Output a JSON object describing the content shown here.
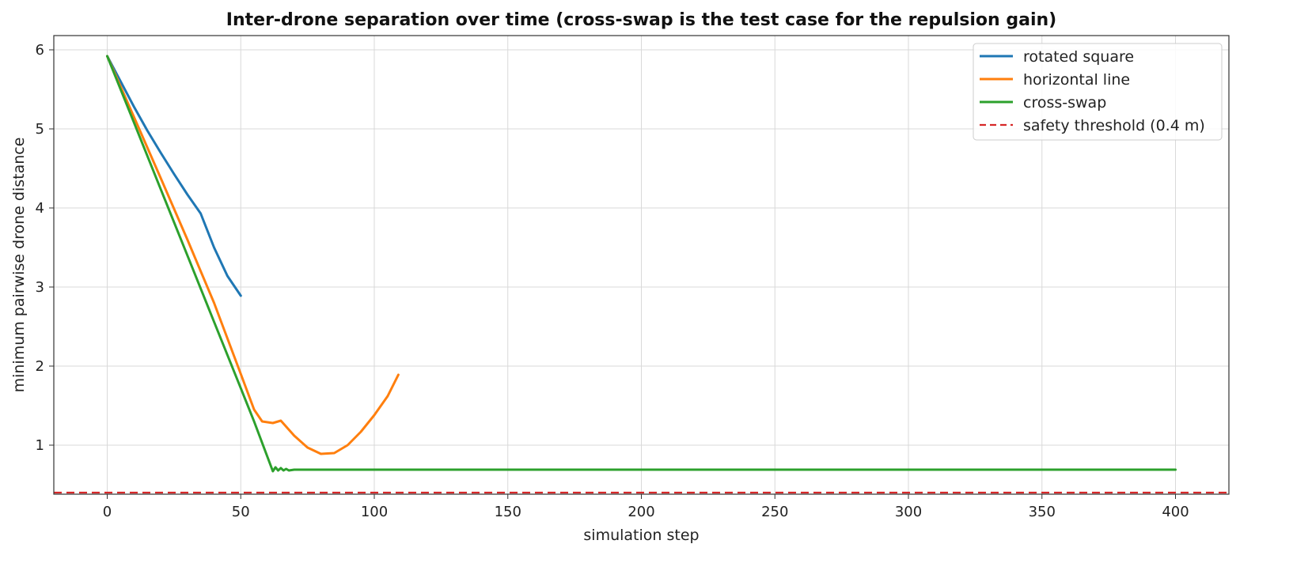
{
  "chart_data": {
    "type": "line",
    "title": "Inter-drone separation over time (cross-swap is the test case for the repulsion gain)",
    "xlabel": "simulation step",
    "ylabel": "minimum pairwise drone distance",
    "xlim": [
      -20,
      420
    ],
    "ylim": [
      0.38,
      6.18
    ],
    "xticks": [
      0,
      50,
      100,
      150,
      200,
      250,
      300,
      350,
      400
    ],
    "yticks": [
      1,
      2,
      3,
      4,
      5,
      6
    ],
    "grid": true,
    "legend_position": "top-right",
    "series": [
      {
        "name": "rotated square",
        "color": "#1f77b4",
        "dash": "solid",
        "points": [
          [
            0,
            5.92
          ],
          [
            5,
            5.6
          ],
          [
            10,
            5.28
          ],
          [
            15,
            4.98
          ],
          [
            20,
            4.7
          ],
          [
            25,
            4.43
          ],
          [
            30,
            4.17
          ],
          [
            35,
            3.93
          ],
          [
            40,
            3.5
          ],
          [
            45,
            3.14
          ],
          [
            50,
            2.89
          ]
        ]
      },
      {
        "name": "horizontal line",
        "color": "#ff7f0e",
        "dash": "solid",
        "points": [
          [
            0,
            5.92
          ],
          [
            10,
            5.15
          ],
          [
            20,
            4.38
          ],
          [
            30,
            3.6
          ],
          [
            40,
            2.8
          ],
          [
            50,
            1.9
          ],
          [
            55,
            1.45
          ],
          [
            58,
            1.3
          ],
          [
            62,
            1.28
          ],
          [
            65,
            1.31
          ],
          [
            70,
            1.12
          ],
          [
            75,
            0.97
          ],
          [
            80,
            0.89
          ],
          [
            85,
            0.9
          ],
          [
            90,
            1.0
          ],
          [
            95,
            1.17
          ],
          [
            100,
            1.38
          ],
          [
            105,
            1.62
          ],
          [
            109,
            1.89
          ]
        ]
      },
      {
        "name": "cross-swap",
        "color": "#2ca02c",
        "dash": "solid",
        "points": [
          [
            0,
            5.92
          ],
          [
            10,
            5.08
          ],
          [
            20,
            4.24
          ],
          [
            30,
            3.4
          ],
          [
            40,
            2.56
          ],
          [
            50,
            1.72
          ],
          [
            55,
            1.3
          ],
          [
            62,
            0.67
          ],
          [
            63,
            0.72
          ],
          [
            64,
            0.68
          ],
          [
            65,
            0.71
          ],
          [
            66,
            0.68
          ],
          [
            67,
            0.7
          ],
          [
            68,
            0.68
          ],
          [
            70,
            0.69
          ],
          [
            80,
            0.69
          ],
          [
            150,
            0.69
          ],
          [
            250,
            0.69
          ],
          [
            350,
            0.69
          ],
          [
            400,
            0.69
          ]
        ]
      },
      {
        "name": "safety threshold (0.4 m)",
        "color": "#d62728",
        "dash": "dashed",
        "points": [
          [
            -20,
            0.4
          ],
          [
            420,
            0.4
          ]
        ]
      }
    ]
  }
}
